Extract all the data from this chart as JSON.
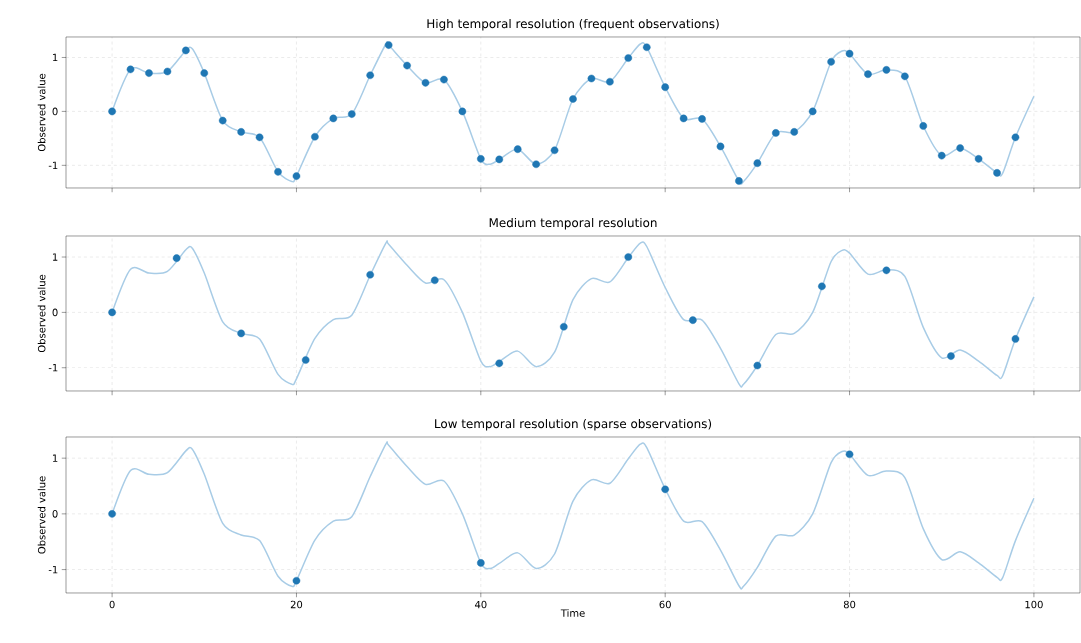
{
  "chart_data": [
    {
      "type": "scatter",
      "title": "High temporal resolution (frequent observations)",
      "ylabel": "Observed value",
      "xlim": [
        -5,
        105
      ],
      "ylim": [
        -1.42,
        1.38
      ],
      "xticks": [
        0,
        20,
        40,
        60,
        80,
        100
      ],
      "yticks": [
        -1,
        0,
        1
      ],
      "grid": true,
      "tick_labels": "y",
      "series": [
        {
          "type": "line",
          "marker": "none",
          "color": "#a8cce6",
          "x": [
            0,
            2,
            4,
            6,
            8,
            8.7,
            10,
            12,
            14,
            16,
            18,
            19.5,
            20,
            22,
            24,
            26,
            28,
            29.7,
            30,
            32,
            34,
            36,
            38,
            40,
            41,
            42,
            44,
            46,
            48,
            50,
            52,
            54,
            56,
            57.3,
            58,
            60,
            62,
            64,
            66,
            68,
            68.5,
            70,
            72,
            74,
            76,
            78,
            79.2,
            80,
            82,
            84,
            86,
            88,
            90,
            92,
            94,
            96,
            96.6,
            98,
            100
          ],
          "values": [
            0,
            0.78,
            0.71,
            0.74,
            1.13,
            1.16,
            0.71,
            -0.17,
            -0.38,
            -0.48,
            -1.12,
            -1.3,
            -1.2,
            -0.47,
            -0.13,
            -0.05,
            0.67,
            1.25,
            1.23,
            0.85,
            0.53,
            0.59,
            0,
            -0.88,
            -0.98,
            -0.89,
            -0.7,
            -0.98,
            -0.72,
            0.23,
            0.61,
            0.55,
            0.99,
            1.25,
            1.19,
            0.45,
            -0.13,
            -0.14,
            -0.65,
            -1.29,
            -1.3,
            -0.96,
            -0.4,
            -0.38,
            0,
            0.92,
            1.12,
            1.07,
            0.69,
            0.77,
            0.65,
            -0.27,
            -0.82,
            -0.68,
            -0.88,
            -1.14,
            -1.15,
            -0.48,
            0.28
          ]
        },
        {
          "marker": "circle",
          "color": "#1f77b4",
          "x": [
            0,
            2,
            4,
            6,
            8,
            10,
            12,
            14,
            16,
            18,
            20,
            22,
            24,
            26,
            28,
            30,
            32,
            34,
            36,
            38,
            40,
            42,
            44,
            46,
            48,
            50,
            52,
            54,
            56,
            58,
            60,
            62,
            64,
            66,
            68,
            70,
            72,
            74,
            76,
            78,
            80,
            82,
            84,
            86,
            88,
            90,
            92,
            94,
            96,
            98
          ],
          "values": [
            0,
            0.78,
            0.71,
            0.74,
            1.13,
            0.71,
            -0.17,
            -0.38,
            -0.48,
            -1.12,
            -1.2,
            -0.47,
            -0.13,
            -0.05,
            0.67,
            1.23,
            0.85,
            0.53,
            0.59,
            0,
            -0.88,
            -0.89,
            -0.7,
            -0.98,
            -0.72,
            0.23,
            0.61,
            0.55,
            0.99,
            1.19,
            0.45,
            -0.13,
            -0.14,
            -0.65,
            -1.29,
            -0.96,
            -0.4,
            -0.38,
            0,
            0.92,
            1.07,
            0.69,
            0.77,
            0.65,
            -0.27,
            -0.82,
            -0.68,
            -0.88,
            -1.14,
            -0.48
          ]
        }
      ]
    },
    {
      "type": "scatter",
      "title": "Medium temporal resolution",
      "ylabel": "Observed value",
      "xlim": [
        -5,
        105
      ],
      "ylim": [
        -1.42,
        1.38
      ],
      "xticks": [
        0,
        20,
        40,
        60,
        80,
        100
      ],
      "yticks": [
        -1,
        0,
        1
      ],
      "grid": true,
      "tick_labels": "y",
      "series": [
        {
          "type": "line",
          "marker": "none",
          "color": "#a8cce6",
          "x": [
            0,
            2,
            4,
            6,
            8,
            8.7,
            10,
            12,
            14,
            16,
            18,
            19.5,
            20,
            22,
            24,
            26,
            28,
            29.7,
            30,
            32,
            34,
            36,
            38,
            40,
            41,
            42,
            44,
            46,
            48,
            50,
            52,
            54,
            56,
            57.3,
            58,
            60,
            62,
            64,
            66,
            68,
            68.5,
            70,
            72,
            74,
            76,
            78,
            79.2,
            80,
            82,
            84,
            86,
            88,
            90,
            92,
            94,
            96,
            96.6,
            98,
            100
          ],
          "values": [
            0,
            0.78,
            0.71,
            0.74,
            1.13,
            1.16,
            0.71,
            -0.17,
            -0.38,
            -0.48,
            -1.12,
            -1.3,
            -1.2,
            -0.47,
            -0.13,
            -0.05,
            0.67,
            1.25,
            1.23,
            0.85,
            0.53,
            0.59,
            0,
            -0.88,
            -0.98,
            -0.89,
            -0.7,
            -0.98,
            -0.72,
            0.23,
            0.61,
            0.55,
            0.99,
            1.25,
            1.19,
            0.45,
            -0.13,
            -0.14,
            -0.65,
            -1.29,
            -1.3,
            -0.96,
            -0.4,
            -0.38,
            0,
            0.92,
            1.12,
            1.07,
            0.69,
            0.77,
            0.65,
            -0.27,
            -0.82,
            -0.68,
            -0.88,
            -1.14,
            -1.15,
            -0.48,
            0.28
          ]
        },
        {
          "marker": "circle",
          "color": "#1f77b4",
          "x": [
            0,
            7,
            14,
            21,
            28,
            35,
            42,
            49,
            56,
            63,
            70,
            77,
            84,
            91,
            98
          ],
          "values": [
            0,
            0.98,
            -0.38,
            -0.86,
            0.68,
            0.58,
            -0.92,
            -0.26,
            1.0,
            -0.14,
            -0.96,
            0.47,
            0.76,
            -0.79,
            -0.48
          ]
        }
      ]
    },
    {
      "type": "scatter",
      "title": "Low temporal resolution (sparse observations)",
      "xlabel": "Time",
      "ylabel": "Observed value",
      "xlim": [
        -5,
        105
      ],
      "ylim": [
        -1.42,
        1.38
      ],
      "xticks": [
        0,
        20,
        40,
        60,
        80,
        100
      ],
      "yticks": [
        -1,
        0,
        1
      ],
      "grid": true,
      "series": [
        {
          "type": "line",
          "marker": "none",
          "color": "#a8cce6",
          "x": [
            0,
            2,
            4,
            6,
            8,
            8.7,
            10,
            12,
            14,
            16,
            18,
            19.5,
            20,
            22,
            24,
            26,
            28,
            29.7,
            30,
            32,
            34,
            36,
            38,
            40,
            41,
            42,
            44,
            46,
            48,
            50,
            52,
            54,
            56,
            57.3,
            58,
            60,
            62,
            64,
            66,
            68,
            68.5,
            70,
            72,
            74,
            76,
            78,
            79.2,
            80,
            82,
            84,
            86,
            88,
            90,
            92,
            94,
            96,
            96.6,
            98,
            100
          ],
          "values": [
            0,
            0.78,
            0.71,
            0.74,
            1.13,
            1.16,
            0.71,
            -0.17,
            -0.38,
            -0.48,
            -1.12,
            -1.3,
            -1.2,
            -0.47,
            -0.13,
            -0.05,
            0.67,
            1.25,
            1.23,
            0.85,
            0.53,
            0.59,
            0,
            -0.88,
            -0.98,
            -0.89,
            -0.7,
            -0.98,
            -0.72,
            0.23,
            0.61,
            0.55,
            0.99,
            1.25,
            1.19,
            0.45,
            -0.13,
            -0.14,
            -0.65,
            -1.29,
            -1.3,
            -0.96,
            -0.4,
            -0.38,
            0,
            0.92,
            1.12,
            1.07,
            0.69,
            0.77,
            0.65,
            -0.27,
            -0.82,
            -0.68,
            -0.88,
            -1.14,
            -1.15,
            -0.48,
            0.28
          ]
        },
        {
          "marker": "circle",
          "color": "#1f77b4",
          "x": [
            0,
            20,
            40,
            60,
            80
          ],
          "values": [
            0,
            -1.2,
            -0.88,
            0.44,
            1.07
          ]
        }
      ]
    }
  ]
}
